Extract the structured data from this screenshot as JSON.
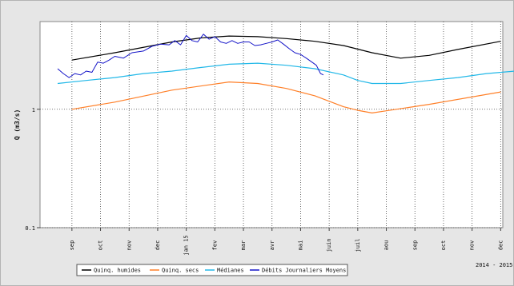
{
  "chart_data": {
    "type": "line",
    "ylabel": "Q (m3/s)",
    "yscale": "log",
    "ylim": [
      0.1,
      5.5
    ],
    "yticks": [
      {
        "value": 0.1,
        "label": "0.1"
      },
      {
        "value": 1,
        "label": "1"
      }
    ],
    "x_tick_labels": [
      "sep",
      "oct",
      "nov",
      "dec",
      "jan 15",
      "fev",
      "mar",
      "avr",
      "mai",
      "juin",
      "juil",
      "aou",
      "sep",
      "oct",
      "nov",
      "dec"
    ],
    "period_label": "2014 - 2015",
    "grid": true,
    "legend_position": "bottom",
    "series": [
      {
        "name": "Quinq. humides",
        "color": "#000000",
        "x": [
          0.5,
          2,
          4,
          5,
          6,
          7,
          8,
          9,
          10,
          11,
          12,
          13,
          14,
          15.5
        ],
        "values": [
          2.6,
          3.0,
          3.7,
          4.0,
          4.15,
          4.1,
          3.95,
          3.75,
          3.45,
          3.0,
          2.7,
          2.85,
          3.2,
          3.75
        ]
      },
      {
        "name": "Quinq. secs",
        "color": "#ff7f27",
        "x": [
          0.5,
          2,
          4,
          6,
          7,
          8,
          9,
          10,
          10.5,
          11,
          11.5,
          13,
          15.5
        ],
        "values": [
          1.0,
          1.15,
          1.45,
          1.7,
          1.65,
          1.5,
          1.3,
          1.05,
          0.98,
          0.93,
          0.97,
          1.1,
          1.4
        ]
      },
      {
        "name": "Médianes",
        "color": "#22b8e8",
        "x": [
          0,
          1,
          2,
          3,
          4,
          5,
          6,
          7,
          8,
          9,
          10,
          10.5,
          11,
          12,
          13,
          14,
          15,
          16
        ],
        "values": [
          1.65,
          1.75,
          1.85,
          2.0,
          2.1,
          2.25,
          2.4,
          2.45,
          2.35,
          2.2,
          1.95,
          1.75,
          1.65,
          1.65,
          1.75,
          1.85,
          2.0,
          2.1
        ]
      },
      {
        "name": "Débits Journaliers Moyens",
        "color": "#1414c8",
        "x": [
          0,
          0.2,
          0.4,
          0.6,
          0.8,
          1,
          1.2,
          1.4,
          1.6,
          1.8,
          2,
          2.3,
          2.6,
          3,
          3.3,
          3.6,
          3.9,
          4.1,
          4.3,
          4.5,
          4.7,
          4.9,
          5.1,
          5.3,
          5.5,
          5.7,
          5.9,
          6.1,
          6.3,
          6.5,
          6.7,
          6.9,
          7.1,
          7.3,
          7.5,
          7.7,
          7.9,
          8.1,
          8.3,
          8.5,
          8.7,
          8.9,
          9.05,
          9.2,
          9.3
        ],
        "values": [
          2.2,
          2.0,
          1.85,
          2.0,
          1.95,
          2.1,
          2.05,
          2.5,
          2.45,
          2.6,
          2.8,
          2.7,
          3.0,
          3.1,
          3.4,
          3.55,
          3.5,
          3.8,
          3.5,
          4.2,
          3.8,
          3.7,
          4.3,
          3.9,
          4.1,
          3.7,
          3.6,
          3.8,
          3.6,
          3.7,
          3.7,
          3.45,
          3.5,
          3.6,
          3.7,
          3.85,
          3.55,
          3.25,
          3.0,
          2.9,
          2.7,
          2.5,
          2.35,
          2.0,
          1.95
        ]
      }
    ]
  }
}
